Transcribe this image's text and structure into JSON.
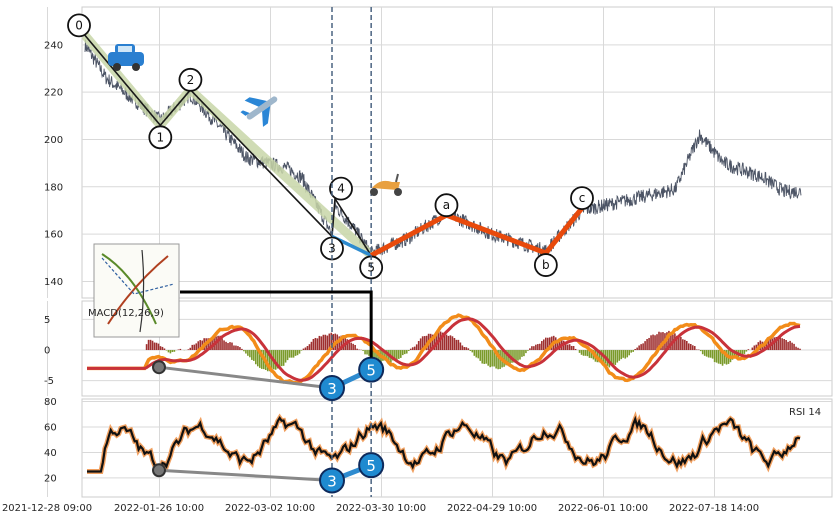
{
  "chart_data": {
    "type": "line",
    "panels": [
      {
        "name": "price",
        "series": [],
        "ylim": [
          133,
          256
        ],
        "yticks": [
          "140",
          "160",
          "180",
          "200",
          "220",
          "240"
        ],
        "wave_points": [
          {
            "label": "0",
            "date": "2021-12-28",
            "value": 244
          },
          {
            "label": "1",
            "date": "2022-01-22",
            "value": 206
          },
          {
            "label": "2",
            "date": "2022-02-01",
            "value": 221
          },
          {
            "label": "3",
            "date": "2022-03-20",
            "value": 159
          },
          {
            "label": "4",
            "date": "2022-03-21",
            "value": 175
          },
          {
            "label": "5",
            "date": "2022-04-02",
            "value": 151
          },
          {
            "label": "a",
            "date": "2022-04-27",
            "value": 168
          },
          {
            "label": "b",
            "date": "2022-05-30",
            "value": 152
          },
          {
            "label": "c",
            "date": "2022-06-11",
            "value": 171
          }
        ],
        "annotations": [
          "car-emoji",
          "airplane-emoji",
          "scooter-emoji",
          "thumbnail-image"
        ]
      },
      {
        "name": "macd",
        "label": "MACD(12,26,9)",
        "ylim": [
          -7.5,
          8
        ],
        "yticks": [
          "-5",
          "0",
          "5"
        ],
        "markers": [
          {
            "label": "3",
            "date": "2022-03-20",
            "value": -6.2
          },
          {
            "label": "5",
            "date": "2022-04-02",
            "value": -3.2
          }
        ]
      },
      {
        "name": "rsi",
        "label": "RSI 14",
        "ylim": [
          5,
          82
        ],
        "yticks": [
          "20",
          "40",
          "60",
          "80"
        ],
        "markers": [
          {
            "label": "3",
            "date": "2022-03-20",
            "value": 18
          },
          {
            "label": "5",
            "date": "2022-04-02",
            "value": 30
          }
        ]
      }
    ],
    "xticks": [
      "2021-12-28 09:00",
      "2022-01-26 10:00",
      "2022-03-02 10:00",
      "2022-03-30 10:00",
      "2022-04-29 10:00",
      "2022-06-01 10:00",
      "2022-07-18 14:00"
    ],
    "vlines": [
      "2022-03-20",
      "2022-04-02"
    ],
    "colors": {
      "price": "#4d5566",
      "wave_impulse": "#1a1a1a",
      "wave_impulse_band": "#c8d6a8",
      "wave_correction": "#e84a0c",
      "wave_blue": "#2e8bcf",
      "macd_line": "#f28c1a",
      "signal_line": "#c8323a",
      "hist_pos": "#9e2f2f",
      "hist_neg": "#7a9a2a",
      "rsi_line": "#111111",
      "rsi_glow": "#f0a060",
      "grid": "#d9d9d9",
      "marker_fill": "#1f8ad0"
    }
  }
}
